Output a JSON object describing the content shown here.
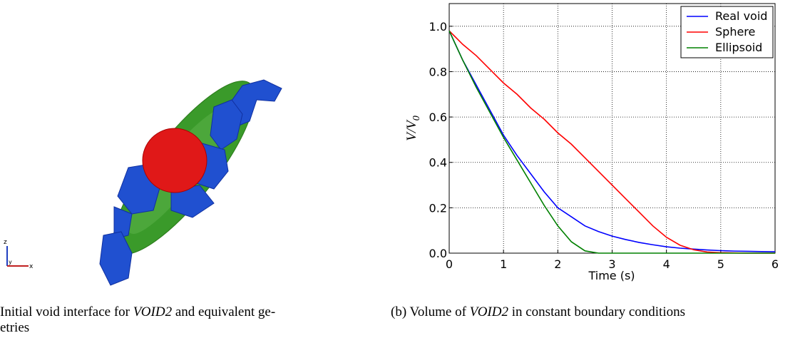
{
  "figure": {
    "triad": {
      "z": "z",
      "x": "x",
      "y": "y"
    },
    "caption_a": {
      "text": "Initial void interface for ",
      "emph": "VOID2",
      "rest": " and equivalent ge-",
      "line2": "etries"
    },
    "caption_b": {
      "label": "(b) Volume of ",
      "emph": "VOID2",
      "rest": " in constant boundary conditions"
    }
  },
  "chart_data": {
    "type": "line",
    "xlabel": "Time (s)",
    "ylabel": "V/V",
    "ylabel_sub": "0",
    "x": [
      0,
      0.25,
      0.5,
      0.75,
      1,
      1.25,
      1.5,
      1.75,
      2,
      2.25,
      2.5,
      2.75,
      3,
      3.25,
      3.5,
      3.75,
      4,
      4.25,
      4.5,
      4.75,
      5,
      5.25,
      5.5,
      5.75,
      6
    ],
    "series": [
      {
        "name": "Real void",
        "color": "#0000ff",
        "values": [
          0.98,
          0.85,
          0.74,
          0.63,
          0.52,
          0.43,
          0.35,
          0.27,
          0.2,
          0.16,
          0.12,
          0.095,
          0.075,
          0.06,
          0.047,
          0.037,
          0.028,
          0.022,
          0.018,
          0.014,
          0.011,
          0.009,
          0.008,
          0.007,
          0.006
        ]
      },
      {
        "name": "Sphere",
        "color": "#ff0000",
        "values": [
          0.98,
          0.92,
          0.87,
          0.81,
          0.75,
          0.7,
          0.64,
          0.59,
          0.53,
          0.48,
          0.42,
          0.36,
          0.3,
          0.24,
          0.18,
          0.12,
          0.07,
          0.035,
          0.015,
          0.005,
          0.002,
          0.001,
          0,
          0,
          0
        ]
      },
      {
        "name": "Ellipsoid",
        "color": "#008000",
        "values": [
          0.98,
          0.85,
          0.73,
          0.62,
          0.51,
          0.41,
          0.31,
          0.21,
          0.12,
          0.05,
          0.01,
          0,
          0,
          0,
          0,
          0,
          0,
          0,
          0,
          0,
          0,
          0,
          0,
          0,
          0
        ]
      }
    ],
    "xlim": [
      0,
      6
    ],
    "xticks": [
      0,
      1,
      2,
      3,
      4,
      5,
      6
    ],
    "ylim": [
      0,
      1.1
    ],
    "yticks": [
      {
        "value": 0,
        "label": "0.0"
      },
      {
        "value": 0.2,
        "label": "0.2"
      },
      {
        "value": 0.4,
        "label": "0.4"
      },
      {
        "value": 0.6,
        "label": "0.6"
      },
      {
        "value": 0.8,
        "label": "0.8"
      },
      {
        "value": 1,
        "label": "1.0"
      }
    ],
    "grid": true,
    "legend": "upper right"
  }
}
